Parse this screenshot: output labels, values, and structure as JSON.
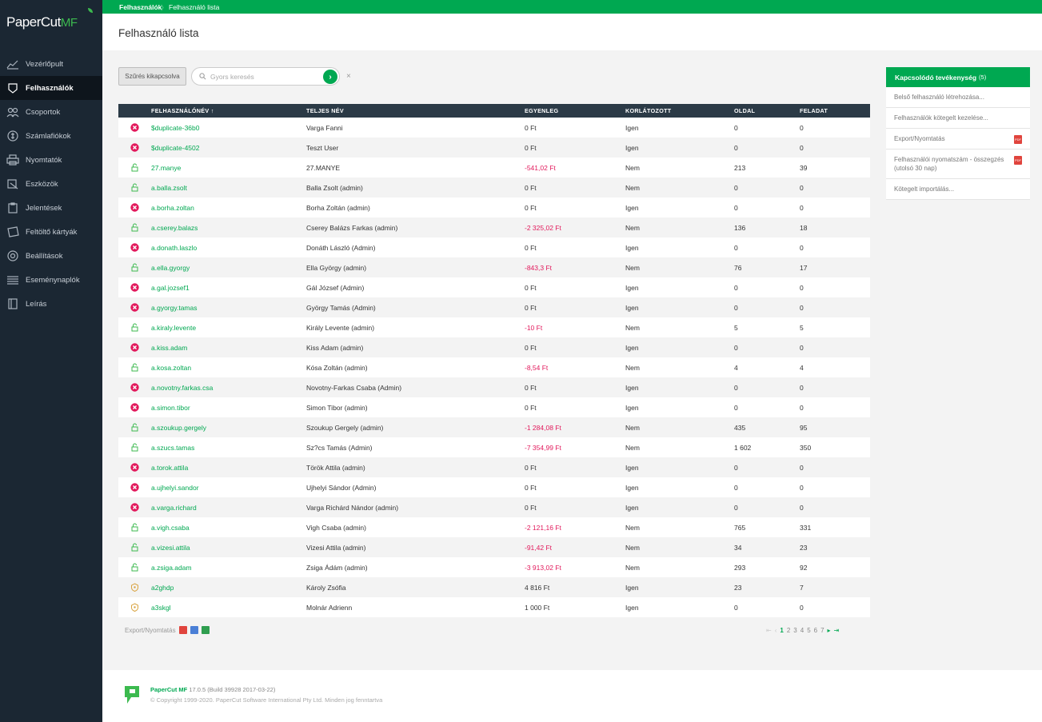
{
  "app": {
    "logo_main": "PaperCut",
    "logo_suffix": "MF"
  },
  "breadcrumb": {
    "parent": "Felhasználók",
    "separator": "〉",
    "current": "Felhasználó lista"
  },
  "page": {
    "title": "Felhasználó lista"
  },
  "nav": [
    {
      "label": "Vezérlőpult",
      "icon": "dashboard-icon"
    },
    {
      "label": "Felhasználók",
      "icon": "users-icon",
      "active": true
    },
    {
      "label": "Csoportok",
      "icon": "groups-icon"
    },
    {
      "label": "Számlafiókok",
      "icon": "accounts-icon"
    },
    {
      "label": "Nyomtatók",
      "icon": "printer-icon"
    },
    {
      "label": "Eszközök",
      "icon": "devices-icon"
    },
    {
      "label": "Jelentések",
      "icon": "reports-icon"
    },
    {
      "label": "Feltöltő kártyák",
      "icon": "cards-icon"
    },
    {
      "label": "Beállítások",
      "icon": "gear-icon"
    },
    {
      "label": "Eseménynaplók",
      "icon": "log-icon"
    },
    {
      "label": "Leírás",
      "icon": "book-icon"
    }
  ],
  "toolbar": {
    "filter_label": "Szűrés kikapcsolva",
    "search_placeholder": "Gyors keresés",
    "go": "›",
    "clear": "×"
  },
  "table": {
    "columns": [
      "FELHASZNÁLÓNÉV ↑",
      "TELJES NÉV",
      "EGYENLEG",
      "KORLÁTOZOTT",
      "OLDAL",
      "FELADAT"
    ],
    "rows": [
      {
        "status": "disabled",
        "user": "$duplicate-36b0",
        "full": "Varga Fanni",
        "balance": "0 Ft",
        "neg": false,
        "restricted": "Igen",
        "pages": "0",
        "jobs": "0"
      },
      {
        "status": "disabled",
        "user": "$duplicate-4502",
        "full": "Teszt User",
        "balance": "0 Ft",
        "neg": false,
        "restricted": "Igen",
        "pages": "0",
        "jobs": "0"
      },
      {
        "status": "unlocked",
        "user": "27.manye",
        "full": "27.MANYE",
        "balance": "-541,02 Ft",
        "neg": true,
        "restricted": "Nem",
        "pages": "213",
        "jobs": "39"
      },
      {
        "status": "unlocked",
        "user": "a.balla.zsolt",
        "full": "Balla Zsolt (admin)",
        "balance": "0 Ft",
        "neg": false,
        "restricted": "Nem",
        "pages": "0",
        "jobs": "0"
      },
      {
        "status": "disabled",
        "user": "a.borha.zoltan",
        "full": "Borha Zoltán (admin)",
        "balance": "0 Ft",
        "neg": false,
        "restricted": "Igen",
        "pages": "0",
        "jobs": "0"
      },
      {
        "status": "unlocked",
        "user": "a.cserey.balazs",
        "full": "Cserey Balázs Farkas (admin)",
        "balance": "-2 325,02 Ft",
        "neg": true,
        "restricted": "Nem",
        "pages": "136",
        "jobs": "18"
      },
      {
        "status": "disabled",
        "user": "a.donath.laszlo",
        "full": "Donáth László (Admin)",
        "balance": "0 Ft",
        "neg": false,
        "restricted": "Igen",
        "pages": "0",
        "jobs": "0"
      },
      {
        "status": "unlocked",
        "user": "a.ella.gyorgy",
        "full": "Ella György (admin)",
        "balance": "-843,3 Ft",
        "neg": true,
        "restricted": "Nem",
        "pages": "76",
        "jobs": "17"
      },
      {
        "status": "disabled",
        "user": "a.gal.jozsef1",
        "full": "Gál József (Admin)",
        "balance": "0 Ft",
        "neg": false,
        "restricted": "Igen",
        "pages": "0",
        "jobs": "0"
      },
      {
        "status": "disabled",
        "user": "a.gyorgy.tamas",
        "full": "György Tamás (Admin)",
        "balance": "0 Ft",
        "neg": false,
        "restricted": "Igen",
        "pages": "0",
        "jobs": "0"
      },
      {
        "status": "unlocked",
        "user": "a.kiraly.levente",
        "full": "Király Levente (admin)",
        "balance": "-10 Ft",
        "neg": true,
        "restricted": "Nem",
        "pages": "5",
        "jobs": "5"
      },
      {
        "status": "disabled",
        "user": "a.kiss.adam",
        "full": "Kiss Adam (admin)",
        "balance": "0 Ft",
        "neg": false,
        "restricted": "Igen",
        "pages": "0",
        "jobs": "0"
      },
      {
        "status": "unlocked",
        "user": "a.kosa.zoltan",
        "full": "Kósa Zoltán (admin)",
        "balance": "-8,54 Ft",
        "neg": true,
        "restricted": "Nem",
        "pages": "4",
        "jobs": "4"
      },
      {
        "status": "disabled",
        "user": "a.novotny.farkas.csa",
        "full": "Novotny-Farkas Csaba (Admin)",
        "balance": "0 Ft",
        "neg": false,
        "restricted": "Igen",
        "pages": "0",
        "jobs": "0"
      },
      {
        "status": "disabled",
        "user": "a.simon.tibor",
        "full": "Simon Tibor (admin)",
        "balance": "0 Ft",
        "neg": false,
        "restricted": "Igen",
        "pages": "0",
        "jobs": "0"
      },
      {
        "status": "unlocked",
        "user": "a.szoukup.gergely",
        "full": "Szoukup Gergely (admin)",
        "balance": "-1 284,08 Ft",
        "neg": true,
        "restricted": "Nem",
        "pages": "435",
        "jobs": "95"
      },
      {
        "status": "unlocked",
        "user": "a.szucs.tamas",
        "full": "Sz?cs Tamás (Admin)",
        "balance": "-7 354,99 Ft",
        "neg": true,
        "restricted": "Nem",
        "pages": "1 602",
        "jobs": "350"
      },
      {
        "status": "disabled",
        "user": "a.torok.attila",
        "full": "Török Attila (admin)",
        "balance": "0 Ft",
        "neg": false,
        "restricted": "Igen",
        "pages": "0",
        "jobs": "0"
      },
      {
        "status": "disabled",
        "user": "a.ujhelyi.sandor",
        "full": "Ujhelyi Sándor (Admin)",
        "balance": "0 Ft",
        "neg": false,
        "restricted": "Igen",
        "pages": "0",
        "jobs": "0"
      },
      {
        "status": "disabled",
        "user": "a.varga.richard",
        "full": "Varga Richárd Nándor (admin)",
        "balance": "0 Ft",
        "neg": false,
        "restricted": "Igen",
        "pages": "0",
        "jobs": "0"
      },
      {
        "status": "unlocked",
        "user": "a.vigh.csaba",
        "full": "Vigh Csaba (admin)",
        "balance": "-2 121,16 Ft",
        "neg": true,
        "restricted": "Nem",
        "pages": "765",
        "jobs": "331"
      },
      {
        "status": "unlocked",
        "user": "a.vizesi.attila",
        "full": "Vizesi Attila (admin)",
        "balance": "-91,42 Ft",
        "neg": true,
        "restricted": "Nem",
        "pages": "34",
        "jobs": "23"
      },
      {
        "status": "unlocked",
        "user": "a.zsiga.adam",
        "full": "Zsiga Ádám (admin)",
        "balance": "-3 913,02 Ft",
        "neg": true,
        "restricted": "Nem",
        "pages": "293",
        "jobs": "92"
      },
      {
        "status": "badge",
        "user": "a2ghdp",
        "full": "Károly Zsófia",
        "balance": "4 816 Ft",
        "neg": false,
        "restricted": "Igen",
        "pages": "23",
        "jobs": "7"
      },
      {
        "status": "badge",
        "user": "a3skgl",
        "full": "Molnár Adrienn",
        "balance": "1 000 Ft",
        "neg": false,
        "restricted": "Igen",
        "pages": "0",
        "jobs": "0"
      }
    ]
  },
  "export": {
    "label": "Export/Nyomtatás"
  },
  "pager": {
    "first": "⇤",
    "prev": "‹",
    "pages": [
      "1",
      "2",
      "3",
      "4",
      "5",
      "6",
      "7"
    ],
    "current": "1",
    "next": "▸",
    "last": "⇥"
  },
  "related": {
    "title": "Kapcsolódó tevékenység",
    "count": "(5)",
    "items": [
      {
        "label": "Belső felhasználó létrehozása...",
        "pdf": false
      },
      {
        "label": "Felhasználók kötegelt kezelése...",
        "pdf": false
      },
      {
        "label": "Export/Nyomtatás",
        "pdf": true
      },
      {
        "label": "Felhasználói nyomatszám - összegzés (utolsó 30 nap)",
        "pdf": true
      },
      {
        "label": "Kötegelt importálás...",
        "pdf": false
      }
    ],
    "pdf_badge": "PDF"
  },
  "footer": {
    "product": "PaperCut MF",
    "version": "17.0.5 (Build 39928 2017-03-22)",
    "copyright": "© Copyright 1999-2020. PaperCut Software International Pty Ltd. Minden jog fenntartva"
  },
  "colors": {
    "brand_green": "#00a851",
    "sidebar_bg": "#1b2733",
    "negative": "#e2185b",
    "header_dark": "#2b3a46"
  }
}
